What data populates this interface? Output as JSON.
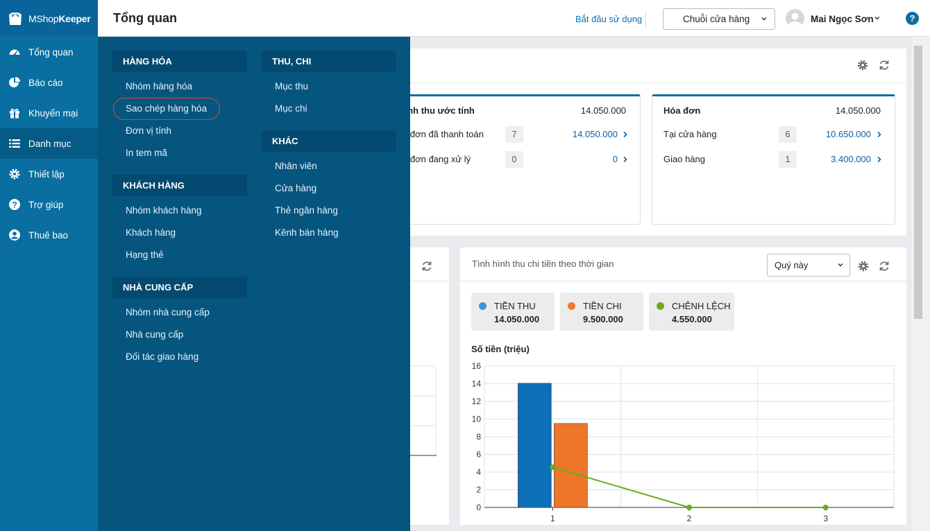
{
  "app": {
    "brand_plain": "MShop",
    "brand_bold": "Keeper"
  },
  "sidebar": {
    "items": [
      {
        "label": "Tổng quan",
        "icon": "dashboard-icon"
      },
      {
        "label": "Báo cáo",
        "icon": "pie-chart-icon"
      },
      {
        "label": "Khuyến mại",
        "icon": "gift-icon"
      },
      {
        "label": "Danh mục",
        "icon": "list-icon",
        "active": true
      },
      {
        "label": "Thiết lập",
        "icon": "gear-icon"
      },
      {
        "label": "Trợ giúp",
        "icon": "help-icon"
      },
      {
        "label": "Thuê bao",
        "icon": "user-icon"
      }
    ]
  },
  "header": {
    "title": "Tổng quan",
    "start_link": "Bắt đầu sử dụng",
    "store_select": "Chuỗi cửa hàng",
    "user_name": "Mai Ngọc Sơn",
    "help": "?"
  },
  "menu": {
    "goods": {
      "title": "HÀNG HÓA",
      "items": [
        "Nhóm hàng hóa",
        "Sao chép hàng hóa",
        "Đơn vị tính",
        "In tem mã"
      ]
    },
    "customers": {
      "title": "KHÁCH HÀNG",
      "items": [
        "Nhóm khách hàng",
        "Khách hàng",
        "Hạng thẻ"
      ]
    },
    "suppliers": {
      "title": "NHÀ CUNG CẤP",
      "items": [
        "Nhóm nhà cung cấp",
        "Nhà cung cấp",
        "Đối tác giao hàng"
      ]
    },
    "finance": {
      "title": "THU, CHI",
      "items": [
        "Mục thu",
        "Mục chi"
      ]
    },
    "other": {
      "title": "KHÁC",
      "items": [
        "Nhân viên",
        "Cửa hàng",
        "Thẻ ngân hàng",
        "Kênh bán hàng"
      ]
    }
  },
  "revenue": {
    "title": "anh thu ước tính",
    "total": "14.050.000",
    "rows": [
      {
        "label": "a đơn đã thanh toán",
        "count": "7",
        "value": "14.050.000"
      },
      {
        "label": "a đơn đang xử lý",
        "count": "0",
        "value": "0"
      }
    ]
  },
  "invoice": {
    "title": "Hóa đơn",
    "total": "14.050.000",
    "rows": [
      {
        "label": "Tại cửa hàng",
        "count": "6",
        "value": "10.650.000"
      },
      {
        "label": "Giao hàng",
        "count": "1",
        "value": "3.400.000"
      }
    ]
  },
  "cashflow": {
    "title": "Tình hình thu chi tiền theo thời gian",
    "period": "Quý này",
    "legend": [
      {
        "name": "TIỀN THU",
        "amount": "14.050.000",
        "color": "#3a93dd"
      },
      {
        "name": "TIỀN CHI",
        "amount": "9.500.000",
        "color": "#ef7a2a"
      },
      {
        "name": "CHÊNH LỆCH",
        "amount": "4.550.000",
        "color": "#6aac1e"
      }
    ],
    "y_label": "Số tiền (triệu)"
  },
  "chart_data": {
    "type": "bar",
    "categories": [
      "1",
      "2",
      "3"
    ],
    "series": [
      {
        "name": "TIỀN THU",
        "kind": "bar",
        "color": "#0d6fb8",
        "values": [
          14.05,
          0,
          0
        ]
      },
      {
        "name": "TIỀN CHI",
        "kind": "bar",
        "color": "#ed7628",
        "values": [
          9.5,
          0,
          0
        ]
      },
      {
        "name": "CHÊNH LỆCH",
        "kind": "line",
        "color": "#6aac1e",
        "values": [
          4.55,
          0,
          0
        ]
      }
    ],
    "ylabel": "Số tiền (triệu)",
    "ylim": [
      0,
      16
    ],
    "yticks": [
      0,
      2,
      4,
      6,
      8,
      10,
      12,
      14,
      16
    ],
    "grid": true
  }
}
